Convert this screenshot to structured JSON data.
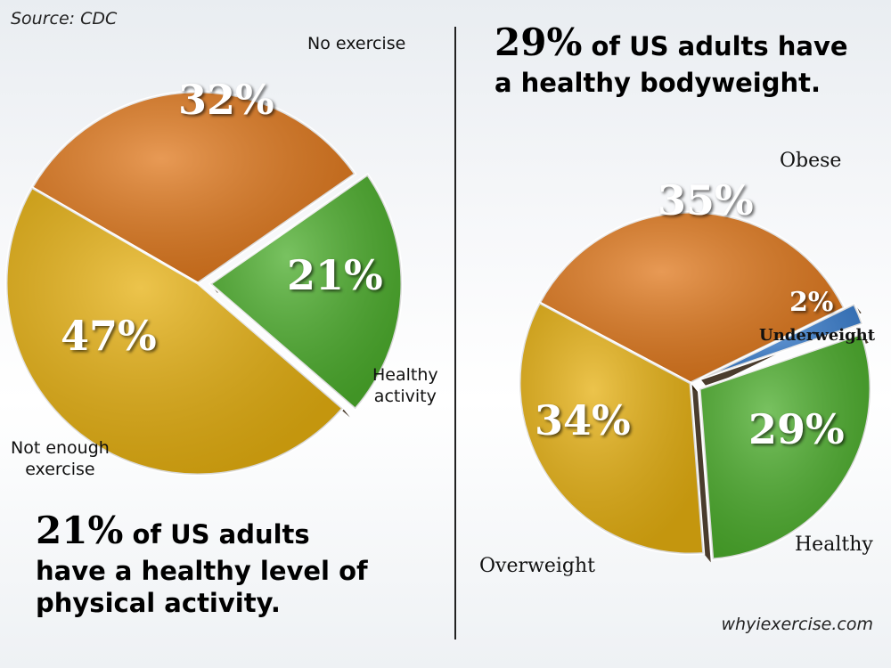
{
  "source": "Source: CDC",
  "website": "whyiexercise.com",
  "chart_data": [
    {
      "type": "pie",
      "title_highlight": "21%",
      "title_rest_line1": "of US adults",
      "title_line2": "have a healthy level of",
      "title_line3": "physical activity.",
      "slices": [
        {
          "label": "No exercise",
          "value": 32,
          "display": "32%",
          "color": "#e0781c"
        },
        {
          "label_line1": "Healthy",
          "label_line2": "activity",
          "value": 21,
          "display": "21%",
          "color": "#4cae2c"
        },
        {
          "label_line1": "Not enough",
          "label_line2": "exercise",
          "value": 47,
          "display": "47%",
          "color": "#e6b010"
        }
      ]
    },
    {
      "type": "pie",
      "title_highlight": "29%",
      "title_rest_line1": "of US adults have",
      "title_line2": "a healthy bodyweight.",
      "slices": [
        {
          "label": "Obese",
          "value": 35,
          "display": "35%",
          "color": "#e0781c"
        },
        {
          "label": "Underweight",
          "value": 2,
          "display": "2%",
          "color": "#3a7fd0"
        },
        {
          "label": "Healthy",
          "value": 29,
          "display": "29%",
          "color": "#4cae2c"
        },
        {
          "label": "Overweight",
          "value": 34,
          "display": "34%",
          "color": "#e6b010"
        }
      ]
    }
  ]
}
